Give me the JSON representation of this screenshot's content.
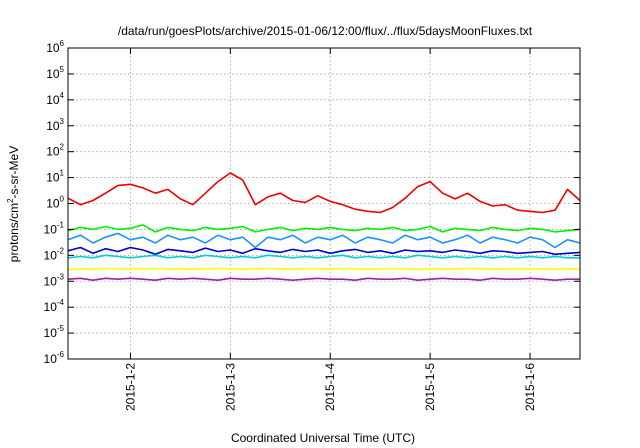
{
  "chart_data": {
    "type": "line",
    "title": "/data/run/goesPlots/archive/2015-01-06/12:00/flux/../flux/5daysMoonFluxes.txt",
    "xlabel": "Coordinated Universal Time (UTC)",
    "ylabel": "protons/cm2-s-sr-MeV",
    "ylabel_parts": {
      "pre": "protons/cm",
      "sup": "2",
      "post": "-s-sr-MeV"
    },
    "xscale": "time",
    "xlim": [
      "2015-01-01T09:00",
      "2015-01-06T12:00"
    ],
    "x_ticks": [
      {
        "label": "2015-1-2",
        "value": "2015-01-02T00:00"
      },
      {
        "label": "2015-1-3",
        "value": "2015-01-03T00:00"
      },
      {
        "label": "2015-1-4",
        "value": "2015-01-04T00:00"
      },
      {
        "label": "2015-1-5",
        "value": "2015-01-05T00:00"
      },
      {
        "label": "2015-1-6",
        "value": "2015-01-06T00:00"
      }
    ],
    "yscale": "log",
    "ylim": [
      1e-06,
      1000000.0
    ],
    "y_ticks": [
      {
        "base": "10",
        "exp": "-6"
      },
      {
        "base": "10",
        "exp": "-5"
      },
      {
        "base": "10",
        "exp": "-4"
      },
      {
        "base": "10",
        "exp": "-3"
      },
      {
        "base": "10",
        "exp": "-2"
      },
      {
        "base": "10",
        "exp": "-1"
      },
      {
        "base": "10",
        "exp": "0"
      },
      {
        "base": "10",
        "exp": "1"
      },
      {
        "base": "10",
        "exp": "2"
      },
      {
        "base": "10",
        "exp": "3"
      },
      {
        "base": "10",
        "exp": "4"
      },
      {
        "base": "10",
        "exp": "5"
      },
      {
        "base": "10",
        "exp": "6"
      }
    ],
    "grid": true,
    "x": [
      "2015-01-01T09:00",
      "2015-01-01T12:00",
      "2015-01-01T15:00",
      "2015-01-01T18:00",
      "2015-01-01T21:00",
      "2015-01-02T00:00",
      "2015-01-02T03:00",
      "2015-01-02T06:00",
      "2015-01-02T09:00",
      "2015-01-02T12:00",
      "2015-01-02T15:00",
      "2015-01-02T18:00",
      "2015-01-02T21:00",
      "2015-01-03T00:00",
      "2015-01-03T03:00",
      "2015-01-03T06:00",
      "2015-01-03T09:00",
      "2015-01-03T12:00",
      "2015-01-03T15:00",
      "2015-01-03T18:00",
      "2015-01-03T21:00",
      "2015-01-04T00:00",
      "2015-01-04T03:00",
      "2015-01-04T06:00",
      "2015-01-04T09:00",
      "2015-01-04T12:00",
      "2015-01-04T15:00",
      "2015-01-04T18:00",
      "2015-01-04T21:00",
      "2015-01-05T00:00",
      "2015-01-05T03:00",
      "2015-01-05T06:00",
      "2015-01-05T09:00",
      "2015-01-05T12:00",
      "2015-01-05T15:00",
      "2015-01-05T18:00",
      "2015-01-05T21:00",
      "2015-01-06T00:00",
      "2015-01-06T03:00",
      "2015-01-06T06:00",
      "2015-01-06T09:00",
      "2015-01-06T12:00"
    ],
    "series": [
      {
        "color": "#ee0000",
        "values": [
          1.6,
          0.9,
          1.3,
          2.5,
          5.0,
          5.5,
          4.0,
          2.5,
          3.5,
          1.5,
          0.9,
          2.5,
          7.0,
          15.0,
          8.0,
          0.9,
          1.8,
          2.5,
          1.3,
          1.1,
          2.0,
          1.2,
          0.9,
          0.6,
          0.5,
          0.45,
          0.7,
          1.6,
          4.5,
          7.0,
          2.5,
          1.5,
          2.5,
          1.2,
          0.8,
          0.9,
          0.55,
          0.5,
          0.45,
          0.55,
          3.5,
          1.3
        ]
      },
      {
        "color": "#00ee00",
        "values": [
          0.09,
          0.12,
          0.1,
          0.13,
          0.1,
          0.11,
          0.15,
          0.08,
          0.12,
          0.1,
          0.09,
          0.12,
          0.1,
          0.11,
          0.13,
          0.08,
          0.1,
          0.12,
          0.09,
          0.11,
          0.1,
          0.12,
          0.1,
          0.09,
          0.11,
          0.1,
          0.12,
          0.09,
          0.1,
          0.13,
          0.08,
          0.11,
          0.1,
          0.09,
          0.12,
          0.1,
          0.09,
          0.11,
          0.1,
          0.08,
          0.09,
          0.1
        ]
      },
      {
        "color": "#1e90ff",
        "values": [
          0.04,
          0.06,
          0.03,
          0.05,
          0.07,
          0.04,
          0.05,
          0.03,
          0.06,
          0.04,
          0.05,
          0.03,
          0.06,
          0.04,
          0.05,
          0.02,
          0.05,
          0.04,
          0.06,
          0.03,
          0.05,
          0.04,
          0.06,
          0.03,
          0.05,
          0.04,
          0.03,
          0.06,
          0.04,
          0.05,
          0.03,
          0.04,
          0.06,
          0.03,
          0.05,
          0.04,
          0.03,
          0.05,
          0.04,
          0.02,
          0.04,
          0.03
        ]
      },
      {
        "color": "#0000cc",
        "values": [
          0.015,
          0.02,
          0.012,
          0.018,
          0.014,
          0.02,
          0.016,
          0.011,
          0.017,
          0.015,
          0.013,
          0.019,
          0.014,
          0.016,
          0.012,
          0.018,
          0.015,
          0.013,
          0.017,
          0.014,
          0.016,
          0.012,
          0.015,
          0.017,
          0.013,
          0.015,
          0.012,
          0.016,
          0.014,
          0.015,
          0.013,
          0.016,
          0.014,
          0.012,
          0.015,
          0.014,
          0.012,
          0.013,
          0.014,
          0.011,
          0.012,
          0.013
        ]
      },
      {
        "color": "#00ced1",
        "values": [
          0.008,
          0.009,
          0.008,
          0.01,
          0.009,
          0.008,
          0.009,
          0.01,
          0.008,
          0.009,
          0.008,
          0.01,
          0.009,
          0.008,
          0.009,
          0.008,
          0.01,
          0.009,
          0.008,
          0.009,
          0.008,
          0.009,
          0.01,
          0.008,
          0.009,
          0.008,
          0.009,
          0.008,
          0.01,
          0.009,
          0.008,
          0.009,
          0.008,
          0.009,
          0.008,
          0.009,
          0.008,
          0.009,
          0.008,
          0.009,
          0.008,
          0.008
        ]
      },
      {
        "color": "#ffff00",
        "values": [
          0.0028,
          0.003,
          0.0029,
          0.0031,
          0.003,
          0.0029,
          0.003,
          0.0031,
          0.0029,
          0.003,
          0.0029,
          0.003,
          0.0031,
          0.003,
          0.0029,
          0.003,
          0.0031,
          0.003,
          0.0029,
          0.003,
          0.003,
          0.0029,
          0.0031,
          0.003,
          0.0029,
          0.003,
          0.0031,
          0.003,
          0.0029,
          0.003,
          0.0029,
          0.003,
          0.0031,
          0.003,
          0.0029,
          0.003,
          0.003,
          0.0029,
          0.003,
          0.0029,
          0.003,
          0.0029
        ]
      },
      {
        "color": "#a020a0",
        "values": [
          0.0012,
          0.0013,
          0.0011,
          0.0013,
          0.0012,
          0.0013,
          0.0012,
          0.0011,
          0.0013,
          0.0012,
          0.0013,
          0.0012,
          0.0011,
          0.0013,
          0.0012,
          0.0012,
          0.0013,
          0.0012,
          0.0011,
          0.0012,
          0.0013,
          0.0012,
          0.0012,
          0.0011,
          0.0013,
          0.0012,
          0.0012,
          0.0013,
          0.0011,
          0.0012,
          0.0013,
          0.0012,
          0.0012,
          0.0011,
          0.0013,
          0.0012,
          0.0012,
          0.0013,
          0.0012,
          0.0011,
          0.0012,
          0.0012
        ]
      }
    ]
  }
}
